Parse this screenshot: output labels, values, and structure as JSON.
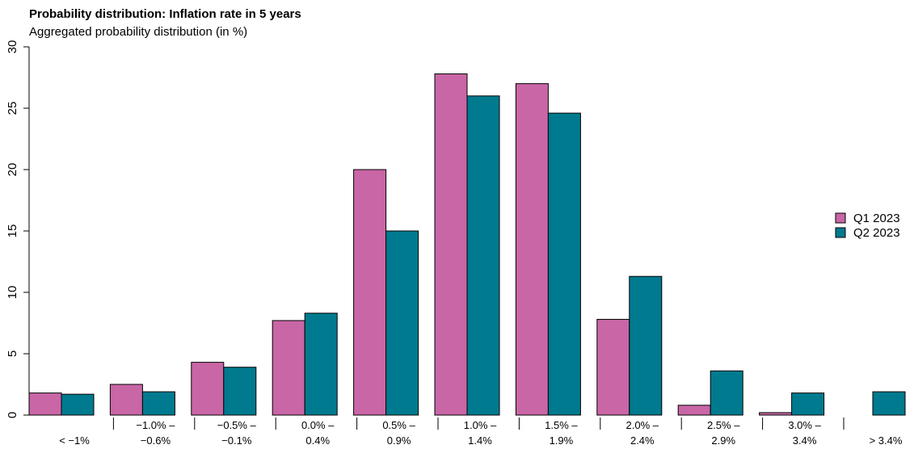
{
  "chart_data": {
    "type": "bar",
    "title": "Probability distribution: Inflation rate in 5 years",
    "subtitle": "Aggregated probability distribution (in %)",
    "categories": [
      [
        "",
        "< −1%"
      ],
      [
        "−1.0% –",
        "−0.6%"
      ],
      [
        "−0.5% –",
        "−0.1%"
      ],
      [
        "0.0% –",
        "0.4%"
      ],
      [
        "0.5% –",
        "0.9%"
      ],
      [
        "1.0% –",
        "1.4%"
      ],
      [
        "1.5% –",
        "1.9%"
      ],
      [
        "2.0% –",
        "2.4%"
      ],
      [
        "2.5% –",
        "2.9%"
      ],
      [
        "3.0% –",
        "3.4%"
      ],
      [
        "",
        "> 3.4%"
      ]
    ],
    "series": [
      {
        "name": "Q1 2023",
        "color": "#c966a6",
        "values": [
          1.8,
          2.5,
          4.3,
          7.7,
          20.0,
          27.8,
          27.0,
          7.8,
          0.8,
          0.2,
          0.0
        ]
      },
      {
        "name": "Q2 2023",
        "color": "#007a8f",
        "values": [
          1.7,
          1.9,
          3.9,
          8.3,
          15.0,
          26.0,
          24.6,
          11.3,
          3.6,
          1.8,
          1.9
        ]
      }
    ],
    "ylim": [
      0,
      30
    ],
    "yticks": [
      "0",
      "5",
      "10",
      "15",
      "20",
      "25",
      "30"
    ],
    "legend_position": "right",
    "grid": false
  }
}
